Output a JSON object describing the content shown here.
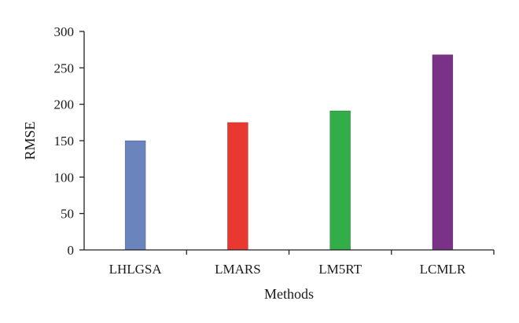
{
  "chart_data": {
    "type": "bar",
    "categories": [
      "LHLGSA",
      "LMARS",
      "LM5RT",
      "LCMLR"
    ],
    "values": [
      150,
      175,
      191,
      268
    ],
    "colors": [
      "#6a84bd",
      "#e8382f",
      "#32ad4a",
      "#7a3286"
    ],
    "title": "",
    "xlabel": "Methods",
    "ylabel": "RMSE",
    "ylim": [
      0,
      300
    ],
    "yticks": [
      0,
      50,
      100,
      150,
      200,
      250,
      300
    ],
    "grid": false,
    "legend": "none"
  }
}
